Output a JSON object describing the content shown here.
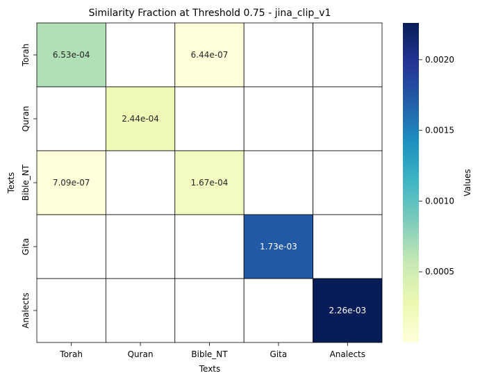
{
  "chart_data": {
    "type": "heatmap",
    "title": "Similarity Fraction at Threshold 0.75 - jina_clip_v1",
    "xlabel": "Texts",
    "ylabel": "Texts",
    "x_categories": [
      "Torah",
      "Quran",
      "Bible_NT",
      "Gita",
      "Analects"
    ],
    "y_categories": [
      "Torah",
      "Quran",
      "Bible_NT",
      "Gita",
      "Analects"
    ],
    "cells": [
      {
        "row": 0,
        "col": 0,
        "value": 0.000653,
        "label": "6.53e-04"
      },
      {
        "row": 0,
        "col": 2,
        "value": 6.44e-07,
        "label": "6.44e-07"
      },
      {
        "row": 1,
        "col": 1,
        "value": 0.000244,
        "label": "2.44e-04"
      },
      {
        "row": 2,
        "col": 0,
        "value": 7.09e-07,
        "label": "7.09e-07"
      },
      {
        "row": 2,
        "col": 2,
        "value": 0.000167,
        "label": "1.67e-04"
      },
      {
        "row": 3,
        "col": 3,
        "value": 0.00173,
        "label": "1.73e-03"
      },
      {
        "row": 4,
        "col": 4,
        "value": 0.00226,
        "label": "2.26e-03"
      }
    ],
    "colorbar": {
      "label": "Values",
      "colormap": "YlGnBu",
      "vmin": 0,
      "vmax": 0.00226,
      "ticks": [
        0.0005,
        0.001,
        0.0015,
        0.002
      ],
      "tick_labels": [
        "0.0005",
        "0.0010",
        "0.0015",
        "0.0020"
      ]
    },
    "empty_cell_color": "#ffffff",
    "grid_line_color": "#000000"
  }
}
